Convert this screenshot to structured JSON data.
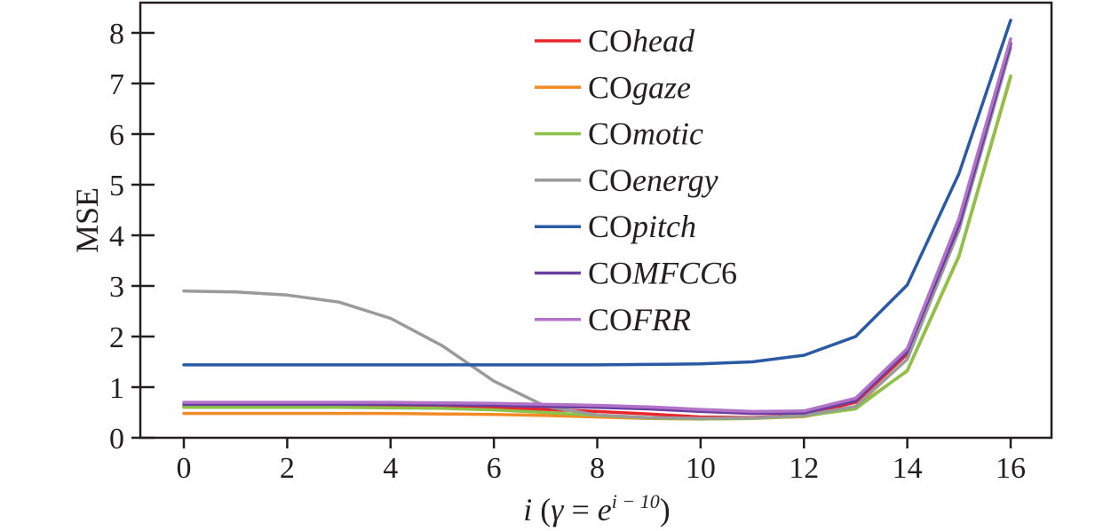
{
  "chart_data": {
    "type": "line",
    "xlabel": {
      "main": "i",
      "open": "(",
      "gamma": "γ",
      "eq": "=",
      "base": "e",
      "exponent": "i − 10",
      "close": ")"
    },
    "ylabel": "MSE",
    "xlim": [
      -0.8,
      16.8
    ],
    "ylim": [
      0,
      8.6
    ],
    "x_ticks": [
      "0",
      "2",
      "4",
      "6",
      "8",
      "10",
      "12",
      "14",
      "16"
    ],
    "y_ticks": [
      "0",
      "1",
      "2",
      "3",
      "4",
      "5",
      "6",
      "7",
      "8"
    ],
    "legend_position": "top-center",
    "x": [
      0,
      1,
      2,
      3,
      4,
      5,
      6,
      7,
      8,
      9,
      10,
      11,
      12,
      13,
      14,
      15,
      16
    ],
    "series": [
      {
        "prefix": "CO",
        "name": "head",
        "color": "#e8262b",
        "values": [
          0.62,
          0.62,
          0.62,
          0.62,
          0.62,
          0.61,
          0.59,
          0.56,
          0.52,
          0.47,
          0.41,
          0.4,
          0.45,
          0.7,
          1.65,
          4.25,
          7.8
        ]
      },
      {
        "prefix": "CO",
        "name": "gaze",
        "color": "#f28a25",
        "values": [
          0.48,
          0.48,
          0.48,
          0.48,
          0.48,
          0.47,
          0.46,
          0.44,
          0.41,
          0.38,
          0.37,
          0.38,
          0.42,
          0.6,
          1.32,
          3.58,
          7.12
        ]
      },
      {
        "prefix": "CO",
        "name": "motic",
        "color": "#8bc34a",
        "values": [
          0.6,
          0.6,
          0.6,
          0.6,
          0.59,
          0.58,
          0.55,
          0.5,
          0.44,
          0.39,
          0.37,
          0.38,
          0.43,
          0.57,
          1.33,
          3.6,
          7.15
        ]
      },
      {
        "prefix": "CO",
        "name": "energy",
        "color": "#9a9a9a",
        "values": [
          2.9,
          2.88,
          2.82,
          2.68,
          2.36,
          1.82,
          1.12,
          0.62,
          0.45,
          0.4,
          0.38,
          0.39,
          0.44,
          0.62,
          1.55,
          4.1,
          7.7
        ]
      },
      {
        "prefix": "CO",
        "name": "pitch",
        "color": "#2b5aa4",
        "values": [
          1.44,
          1.44,
          1.44,
          1.44,
          1.44,
          1.44,
          1.44,
          1.44,
          1.44,
          1.45,
          1.46,
          1.5,
          1.63,
          2.0,
          3.02,
          5.22,
          8.25
        ]
      },
      {
        "prefix": "CO",
        "name": "MFCC",
        "suffix": "6",
        "color": "#6a3fa0",
        "values": [
          0.66,
          0.66,
          0.66,
          0.66,
          0.66,
          0.65,
          0.64,
          0.62,
          0.6,
          0.57,
          0.52,
          0.48,
          0.49,
          0.73,
          1.7,
          4.2,
          7.78
        ]
      },
      {
        "prefix": "CO",
        "name": "FRR",
        "color": "#b172c8",
        "values": [
          0.7,
          0.7,
          0.7,
          0.7,
          0.7,
          0.69,
          0.68,
          0.66,
          0.64,
          0.61,
          0.56,
          0.52,
          0.53,
          0.78,
          1.76,
          4.33,
          7.88
        ]
      }
    ]
  }
}
